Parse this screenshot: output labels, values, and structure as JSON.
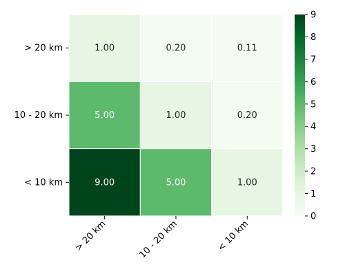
{
  "chart_data": {
    "type": "heatmap",
    "x_categories": [
      "> 20 km",
      "10 - 20 km",
      "< 10 km"
    ],
    "y_categories": [
      "> 20 km",
      "10 - 20 km",
      "< 10 km"
    ],
    "values": [
      [
        1.0,
        0.2,
        0.11
      ],
      [
        5.0,
        1.0,
        0.2
      ],
      [
        9.0,
        5.0,
        1.0
      ]
    ],
    "cell_labels": [
      [
        "1.00",
        "0.20",
        "0.11"
      ],
      [
        "5.00",
        "1.00",
        "0.20"
      ],
      [
        "9.00",
        "5.00",
        "1.00"
      ]
    ],
    "colorbar": {
      "min": 0,
      "max": 9,
      "ticks": [
        "0",
        "1",
        "2",
        "3",
        "4",
        "5",
        "6",
        "7",
        "8",
        "9"
      ]
    },
    "colormap": "Greens",
    "title": "",
    "xlabel": "",
    "ylabel": ""
  }
}
